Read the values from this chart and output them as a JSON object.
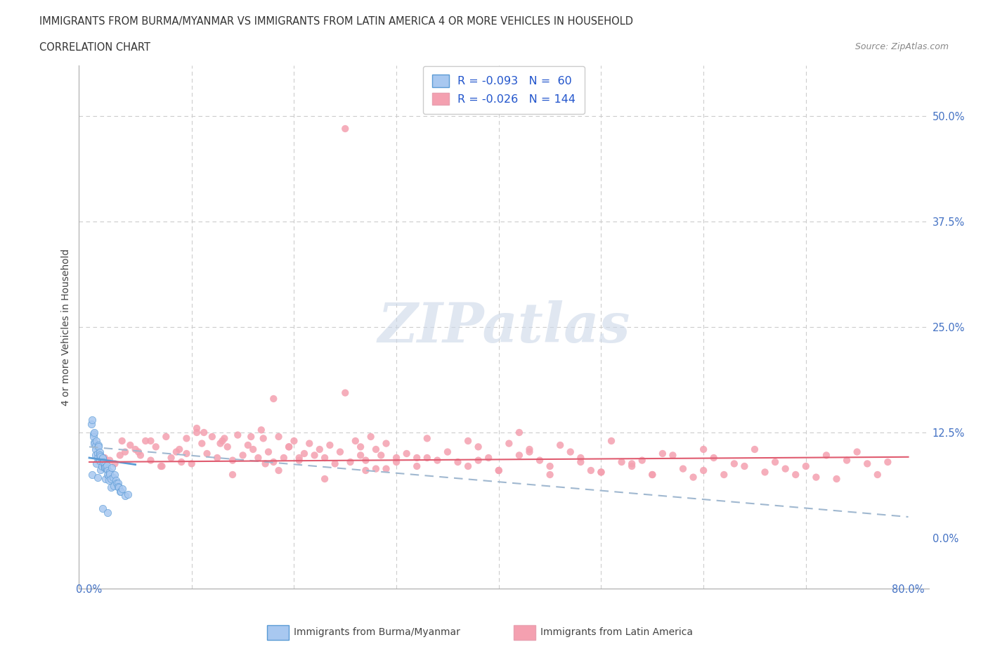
{
  "title_line1": "IMMIGRANTS FROM BURMA/MYANMAR VS IMMIGRANTS FROM LATIN AMERICA 4 OR MORE VEHICLES IN HOUSEHOLD",
  "title_line2": "CORRELATION CHART",
  "source_text": "Source: ZipAtlas.com",
  "ylabel": "4 or more Vehicles in Household",
  "legend_label1": "Immigrants from Burma/Myanmar",
  "legend_label2": "Immigrants from Latin America",
  "legend_r1": "R = -0.093",
  "legend_n1": "N =  60",
  "legend_r2": "R = -0.026",
  "legend_n2": "N = 144",
  "ytick_vals": [
    0.0,
    12.5,
    25.0,
    37.5,
    50.0
  ],
  "xlim": [
    -1.0,
    82.0
  ],
  "ylim": [
    -6.0,
    56.0
  ],
  "color_burma": "#a8c8f0",
  "color_burma_line": "#5b9bd5",
  "color_latin": "#f4a0b0",
  "color_latin_line": "#e05c70",
  "color_dashed": "#a0b8d0",
  "watermark": "ZIPatlas",
  "burma_x": [
    0.2,
    0.3,
    0.3,
    0.4,
    0.4,
    0.5,
    0.5,
    0.5,
    0.6,
    0.6,
    0.6,
    0.7,
    0.7,
    0.8,
    0.8,
    0.8,
    0.9,
    0.9,
    1.0,
    1.0,
    1.0,
    1.1,
    1.1,
    1.2,
    1.2,
    1.3,
    1.3,
    1.4,
    1.4,
    1.5,
    1.5,
    1.5,
    1.6,
    1.6,
    1.7,
    1.7,
    1.8,
    1.8,
    1.9,
    1.9,
    2.0,
    2.0,
    2.1,
    2.1,
    2.2,
    2.3,
    2.4,
    2.5,
    2.6,
    2.7,
    2.8,
    2.8,
    2.9,
    3.0,
    3.1,
    3.2,
    3.5,
    3.8,
    1.3,
    1.8
  ],
  "burma_y": [
    13.5,
    14.0,
    7.5,
    12.3,
    12.0,
    11.3,
    11.2,
    12.5,
    10.9,
    10.5,
    9.8,
    11.5,
    8.8,
    10.0,
    9.5,
    7.2,
    11.0,
    10.8,
    10.2,
    9.8,
    9.2,
    9.7,
    8.1,
    9.3,
    8.5,
    9.4,
    9.5,
    9.0,
    8.9,
    8.7,
    8.3,
    8.3,
    8.4,
    7.0,
    8.2,
    8.6,
    8.0,
    7.5,
    7.3,
    6.8,
    7.8,
    7.6,
    7.0,
    6.0,
    8.3,
    7.2,
    6.2,
    7.5,
    6.8,
    6.5,
    6.5,
    6.1,
    6.0,
    5.5,
    5.5,
    5.8,
    5.0,
    5.2,
    3.5,
    3.0
  ],
  "latin_x": [
    1.0,
    1.5,
    2.0,
    2.5,
    3.0,
    3.5,
    4.0,
    4.5,
    5.0,
    5.5,
    6.0,
    6.5,
    7.0,
    7.5,
    8.0,
    8.5,
    9.0,
    9.5,
    10.0,
    10.5,
    11.0,
    11.5,
    12.0,
    12.5,
    13.0,
    13.5,
    14.0,
    14.5,
    15.0,
    15.5,
    16.0,
    16.5,
    17.0,
    17.5,
    18.0,
    18.5,
    19.0,
    19.5,
    20.0,
    20.5,
    21.0,
    21.5,
    22.0,
    22.5,
    23.0,
    23.5,
    24.0,
    24.5,
    25.0,
    25.5,
    26.0,
    26.5,
    27.0,
    27.5,
    28.0,
    28.5,
    29.0,
    30.0,
    31.0,
    32.0,
    33.0,
    34.0,
    35.0,
    36.0,
    37.0,
    38.0,
    39.0,
    40.0,
    41.0,
    42.0,
    43.0,
    44.0,
    45.0,
    46.0,
    47.0,
    48.0,
    49.0,
    50.0,
    51.0,
    52.0,
    53.0,
    54.0,
    55.0,
    56.0,
    57.0,
    58.0,
    59.0,
    60.0,
    61.0,
    62.0,
    63.0,
    64.0,
    65.0,
    66.0,
    67.0,
    68.0,
    69.0,
    70.0,
    71.0,
    72.0,
    73.0,
    74.0,
    75.0,
    76.0,
    77.0,
    78.0,
    3.2,
    7.1,
    10.5,
    18.0,
    25.0,
    4.8,
    11.2,
    16.8,
    20.5,
    28.0,
    14.0,
    19.5,
    30.0,
    12.8,
    23.0,
    8.8,
    17.2,
    26.5,
    40.0,
    6.0,
    32.0,
    45.0,
    9.5,
    15.8,
    29.0,
    38.0,
    50.0,
    18.5,
    33.0,
    43.0,
    55.0,
    13.2,
    37.0,
    48.0,
    60.0,
    27.0,
    42.0,
    53.0
  ],
  "latin_y": [
    9.0,
    9.5,
    9.2,
    8.8,
    9.8,
    10.2,
    11.0,
    10.5,
    9.8,
    11.5,
    9.2,
    10.8,
    8.5,
    12.0,
    9.5,
    10.2,
    9.0,
    11.8,
    8.8,
    12.5,
    11.2,
    10.0,
    12.0,
    9.5,
    11.5,
    10.8,
    9.2,
    12.2,
    9.8,
    11.0,
    10.5,
    9.5,
    11.8,
    10.2,
    9.0,
    12.0,
    9.5,
    10.8,
    11.5,
    9.2,
    10.0,
    11.2,
    9.8,
    10.5,
    9.5,
    11.0,
    8.8,
    10.2,
    48.5,
    9.0,
    11.5,
    10.8,
    9.2,
    12.0,
    10.5,
    9.8,
    11.2,
    9.5,
    10.0,
    8.5,
    11.8,
    9.2,
    10.2,
    9.0,
    11.5,
    10.8,
    9.5,
    8.0,
    11.2,
    9.8,
    10.5,
    9.2,
    8.5,
    11.0,
    10.2,
    9.5,
    8.0,
    7.8,
    11.5,
    9.0,
    8.5,
    9.2,
    7.5,
    10.0,
    9.8,
    8.2,
    7.2,
    8.0,
    9.5,
    7.5,
    8.8,
    8.5,
    10.5,
    7.8,
    9.0,
    8.2,
    7.5,
    8.5,
    7.2,
    9.8,
    7.0,
    9.2,
    10.2,
    8.8,
    7.5,
    9.0,
    11.5,
    8.5,
    13.0,
    16.5,
    17.2,
    10.2,
    12.5,
    12.8,
    9.5,
    8.2,
    7.5,
    10.8,
    9.0,
    11.2,
    7.0,
    10.5,
    8.8,
    9.8,
    8.0,
    11.5,
    9.5,
    7.5,
    10.0,
    12.0,
    8.2,
    9.2,
    7.8,
    8.0,
    9.5,
    10.2,
    7.5,
    11.8,
    8.5,
    9.0,
    10.5,
    8.0,
    12.5,
    8.8
  ]
}
